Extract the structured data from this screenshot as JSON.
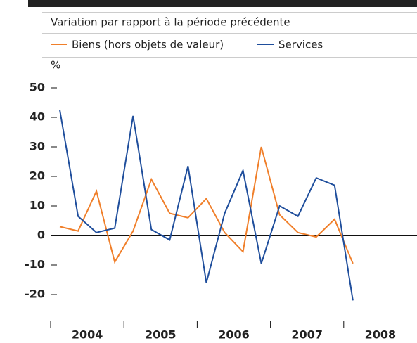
{
  "chart_data": {
    "type": "line",
    "subtitle": "Variation par rapport à la période précédente",
    "y_unit": "%",
    "categories": [
      null,
      null,
      null,
      null,
      null,
      null,
      null,
      null,
      null,
      null,
      null,
      null,
      null,
      null,
      null,
      null,
      null
    ],
    "year_labels": [
      "2004",
      "2005",
      "2006",
      "2007",
      "2008"
    ],
    "series": [
      {
        "name": "Biens (hors objets de valeur)",
        "color": "#f07f2a",
        "values": [
          3,
          1.5,
          15,
          -9,
          1.5,
          19,
          7.5,
          6,
          12.5,
          1,
          -5.5,
          30,
          7,
          1,
          -0.5,
          5.5,
          -9.5
        ]
      },
      {
        "name": "Services",
        "color": "#1f4e9c",
        "values": [
          42.5,
          6.5,
          1,
          2.5,
          40.5,
          2,
          -1.5,
          23.5,
          -16,
          7.5,
          22,
          -9.5,
          10,
          6.5,
          19.5,
          17,
          -22
        ]
      }
    ],
    "ylim": [
      -30,
      50
    ],
    "yticks": [
      -20,
      -10,
      0,
      10,
      20,
      30,
      40,
      50
    ]
  }
}
